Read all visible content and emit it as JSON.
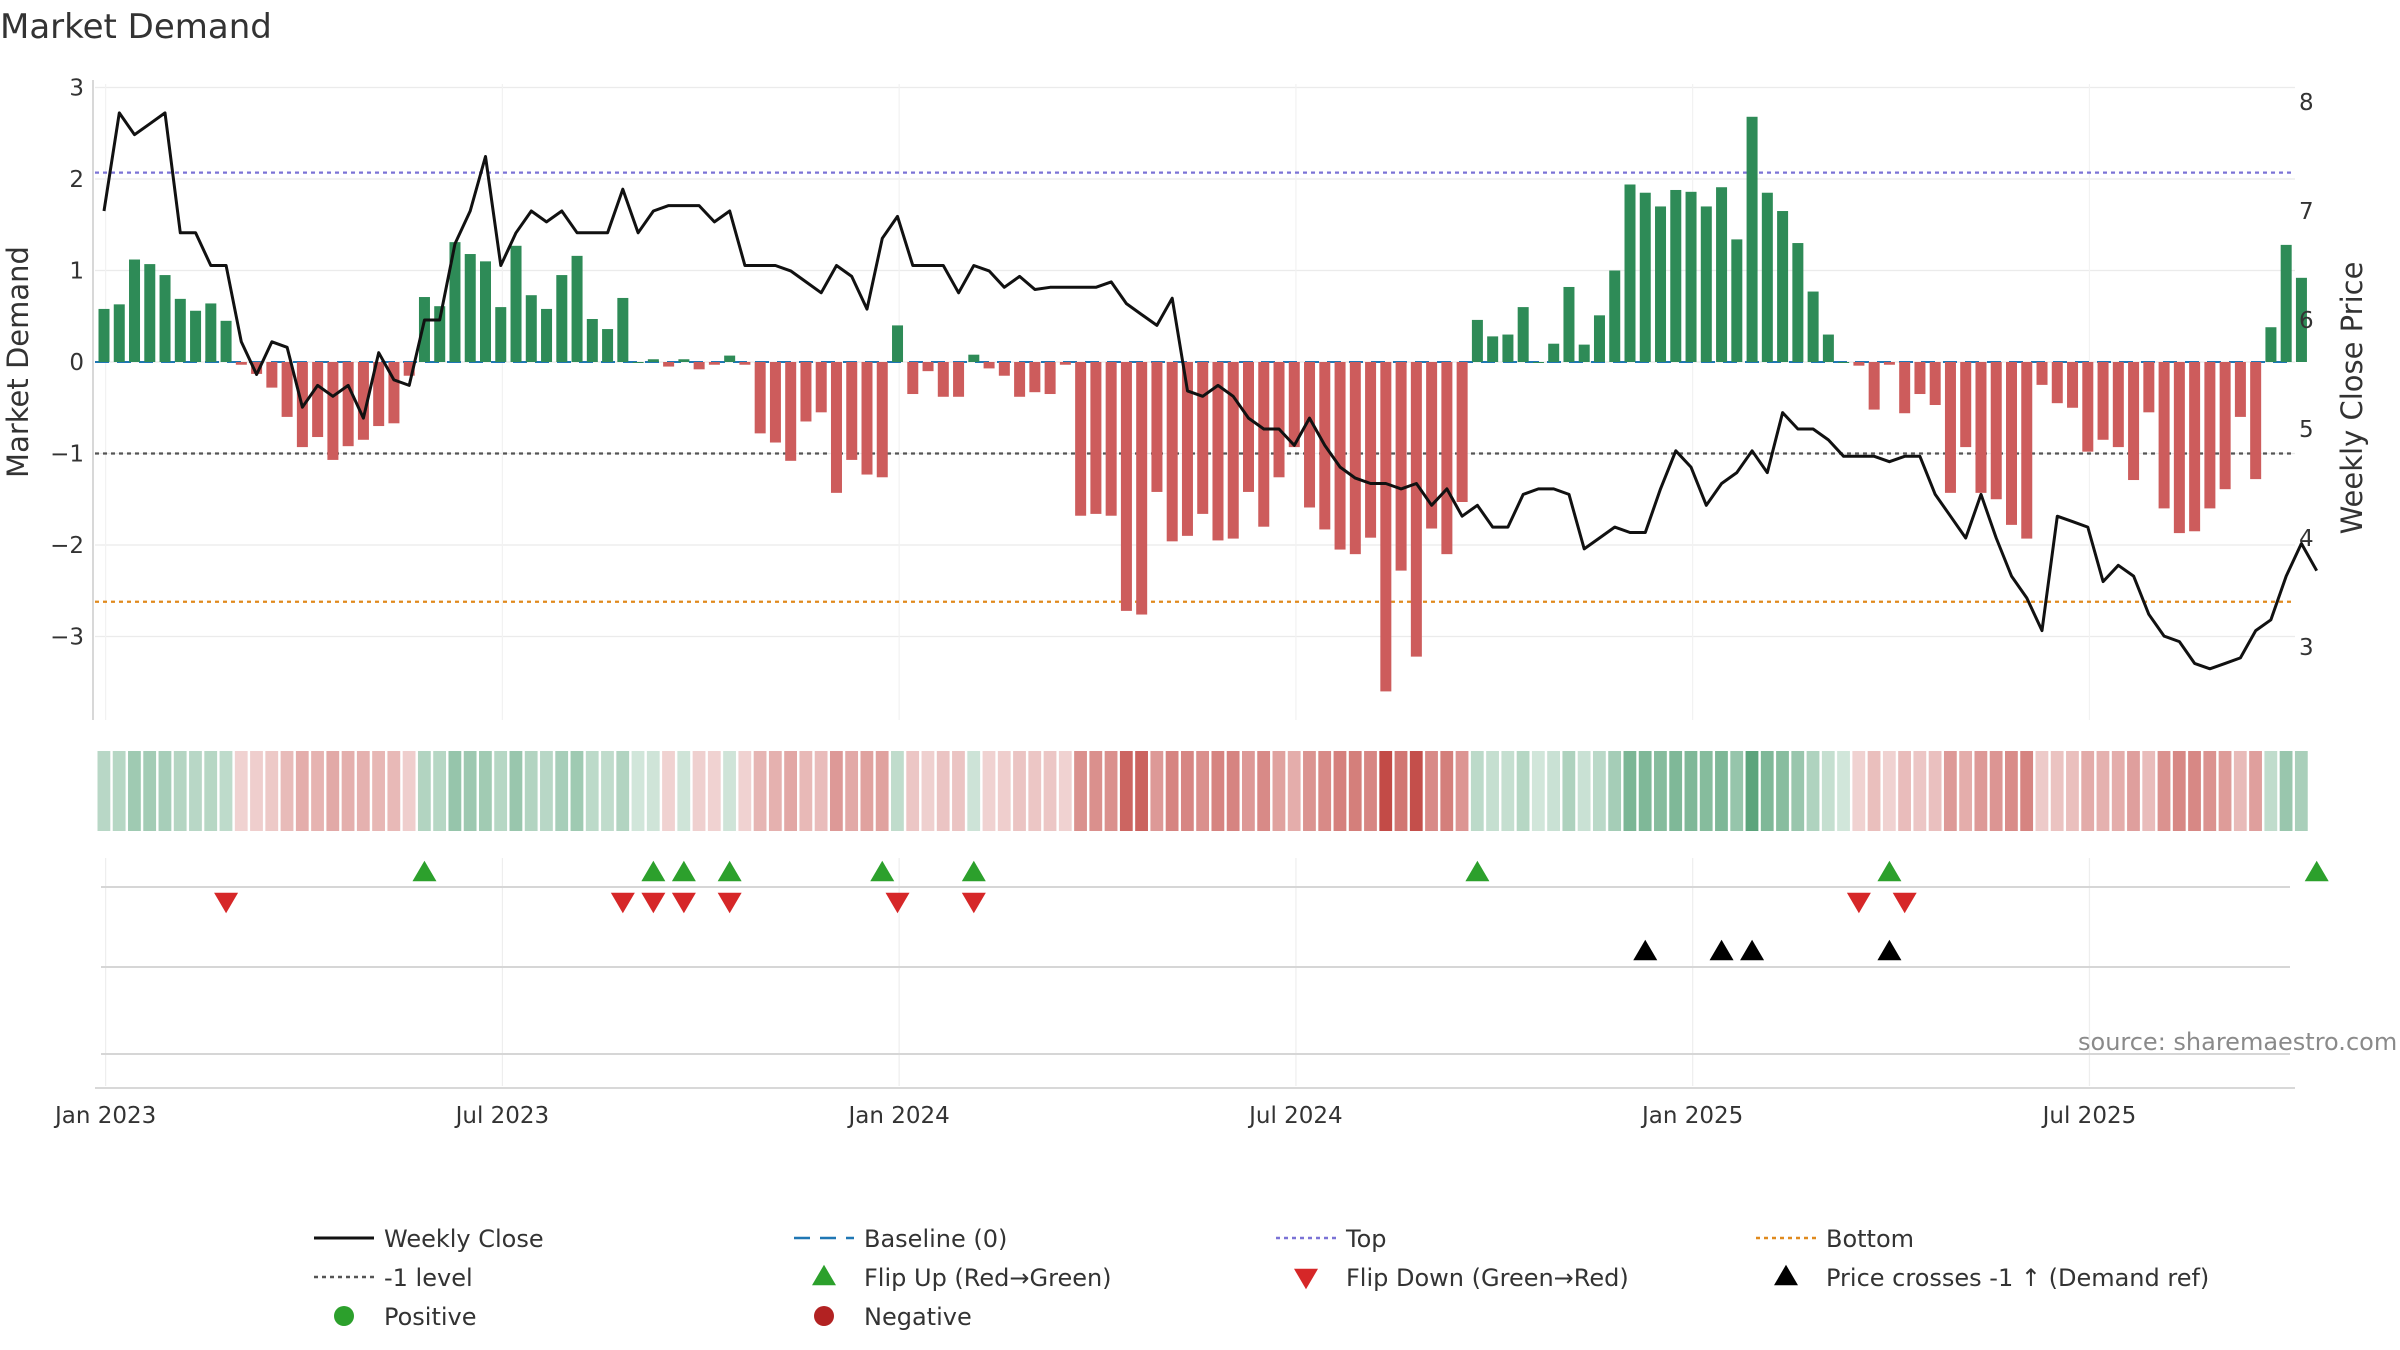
{
  "chart_data": {
    "type": "bar",
    "title": "Market Demand",
    "ylabel": "Market Demand",
    "y2label": "Weekly Close Price",
    "ylim": [
      -3.9,
      3
    ],
    "y2lim": [
      2.4,
      8.1
    ],
    "yticks": [
      "3",
      "2",
      "1",
      "0",
      "−1",
      "−2",
      "−3"
    ],
    "y2ticks": [
      "8",
      "7",
      "6",
      "5",
      "4",
      "3"
    ],
    "xtick_labels": [
      "Jan 2023",
      "Jul 2023",
      "Jan 2024",
      "Jul 2024",
      "Jan 2025",
      "Jul 2025"
    ],
    "xtick_weeks": [
      0.5,
      26.5,
      52.5,
      78.5,
      104.5,
      130.5
    ],
    "reference_lines": {
      "top": 2.07,
      "minus_one": -1.0,
      "bottom": -2.62
    },
    "demand": [
      0.58,
      0.63,
      1.12,
      1.07,
      0.95,
      0.69,
      0.56,
      0.64,
      0.45,
      -0.03,
      -0.13,
      -0.28,
      -0.6,
      -0.93,
      -0.82,
      -1.07,
      -0.92,
      -0.85,
      -0.7,
      -0.67,
      -0.15,
      0.71,
      0.61,
      1.31,
      1.18,
      1.1,
      0.6,
      1.27,
      0.73,
      0.58,
      0.95,
      1.16,
      0.47,
      0.36,
      0.7,
      0.0,
      0.03,
      -0.05,
      0.03,
      -0.08,
      -0.03,
      0.07,
      -0.03,
      -0.78,
      -0.88,
      -1.08,
      -0.65,
      -0.55,
      -1.43,
      -1.07,
      -1.23,
      -1.26,
      0.4,
      -0.35,
      -0.1,
      -0.38,
      -0.38,
      0.08,
      -0.07,
      -0.15,
      -0.38,
      -0.33,
      -0.35,
      -0.03,
      -1.68,
      -1.66,
      -1.68,
      -2.72,
      -2.76,
      -1.42,
      -1.96,
      -1.9,
      -1.66,
      -1.95,
      -1.93,
      -1.42,
      -1.8,
      -1.26,
      -0.93,
      -1.59,
      -1.83,
      -2.05,
      -2.1,
      -1.92,
      -3.6,
      -2.28,
      -3.22,
      -1.82,
      -2.1,
      -1.53,
      0.46,
      0.28,
      0.3,
      0.6,
      0.0,
      0.2,
      0.82,
      0.19,
      0.51,
      1.0,
      1.94,
      1.85,
      1.7,
      1.88,
      1.86,
      1.7,
      1.91,
      1.34,
      2.68,
      1.85,
      1.65,
      1.3,
      0.77,
      0.3,
      0.0,
      -0.04,
      -0.52,
      -0.03,
      -0.56,
      -0.35,
      -0.47,
      -1.43,
      -0.93,
      -1.43,
      -1.5,
      -1.78,
      -1.93,
      -0.25,
      -0.45,
      -0.5,
      -0.98,
      -0.85,
      -0.93,
      -1.29,
      -0.55,
      -1.6,
      -1.87,
      -1.85,
      -1.6,
      -1.39,
      -0.6,
      -1.28,
      0.38,
      1.28,
      0.92
    ],
    "weekly_close": [
      7.0,
      7.9,
      7.7,
      7.8,
      7.9,
      6.8,
      6.8,
      6.5,
      6.5,
      5.8,
      5.5,
      5.8,
      5.75,
      5.2,
      5.4,
      5.3,
      5.4,
      5.1,
      5.7,
      5.45,
      5.4,
      6.0,
      6.0,
      6.7,
      7.0,
      7.5,
      6.5,
      6.8,
      7.0,
      6.9,
      7.0,
      6.8,
      6.8,
      6.8,
      7.2,
      6.8,
      7.0,
      7.05,
      7.05,
      7.05,
      6.9,
      7.0,
      6.5,
      6.5,
      6.5,
      6.45,
      6.35,
      6.25,
      6.5,
      6.4,
      6.1,
      6.75,
      6.95,
      6.5,
      6.5,
      6.5,
      6.25,
      6.5,
      6.45,
      6.3,
      6.4,
      6.28,
      6.3,
      6.3,
      6.3,
      6.3,
      6.35,
      6.15,
      6.05,
      5.95,
      6.2,
      5.35,
      5.3,
      5.4,
      5.3,
      5.1,
      5.0,
      5.0,
      4.85,
      5.1,
      4.85,
      4.65,
      4.55,
      4.5,
      4.5,
      4.45,
      4.5,
      4.3,
      4.45,
      4.2,
      4.3,
      4.1,
      4.1,
      4.4,
      4.45,
      4.45,
      4.4,
      3.9,
      4.0,
      4.1,
      4.05,
      4.05,
      4.45,
      4.8,
      4.65,
      4.3,
      4.5,
      4.6,
      4.8,
      4.6,
      5.15,
      5.0,
      5.0,
      4.9,
      4.75,
      4.75,
      4.75,
      4.7,
      4.75,
      4.75,
      4.4,
      4.2,
      4.0,
      4.4,
      4.0,
      3.65,
      3.45,
      3.15,
      4.2,
      4.15,
      4.1,
      3.6,
      3.75,
      3.65,
      3.3,
      3.1,
      3.05,
      2.85,
      2.8,
      2.85,
      2.9,
      3.15,
      3.25,
      3.65,
      3.95,
      3.7
    ],
    "flip_up_weeks": [
      21,
      36,
      38,
      41,
      51,
      57,
      90,
      117,
      145
    ],
    "flip_down_weeks": [
      8,
      34,
      36,
      38,
      41,
      52,
      57,
      115,
      118
    ],
    "price_cross_weeks": [
      101,
      106,
      108,
      117
    ],
    "legend": [
      {
        "label": "Weekly Close",
        "symbol": "solid-line",
        "color": "#111111"
      },
      {
        "label": "Baseline (0)",
        "symbol": "dashed-line",
        "color": "#1f77b4"
      },
      {
        "label": "Top",
        "symbol": "dotted-line",
        "color": "#7b73d6"
      },
      {
        "label": "Bottom",
        "symbol": "dotted-line",
        "color": "#e08a1e"
      },
      {
        "label": "-1 level",
        "symbol": "dotted-line",
        "color": "#555555"
      },
      {
        "label": "Flip Up (Red→Green)",
        "symbol": "triangle-up",
        "color": "#2ca02c"
      },
      {
        "label": "Flip Down (Green→Red)",
        "symbol": "triangle-down",
        "color": "#d62728"
      },
      {
        "label": "Price crosses -1 ↑ (Demand ref)",
        "symbol": "triangle-up",
        "color": "#000000"
      },
      {
        "label": "Positive",
        "symbol": "dot",
        "color": "#2ca02c"
      },
      {
        "label": "Negative",
        "symbol": "dot",
        "color": "#b22222"
      }
    ],
    "colors": {
      "positive_bar": "#2e8b57",
      "negative_bar": "#cd5c5c",
      "flip_up": "#2ca02c",
      "flip_down": "#d62728",
      "cross": "#000000",
      "close_line": "#111111",
      "baseline": "#1f77b4",
      "top_line": "#7b73d6",
      "bottom_line": "#e08a1e",
      "minus_one_line": "#555555"
    }
  },
  "source_text": "source: sharemaestro.com"
}
